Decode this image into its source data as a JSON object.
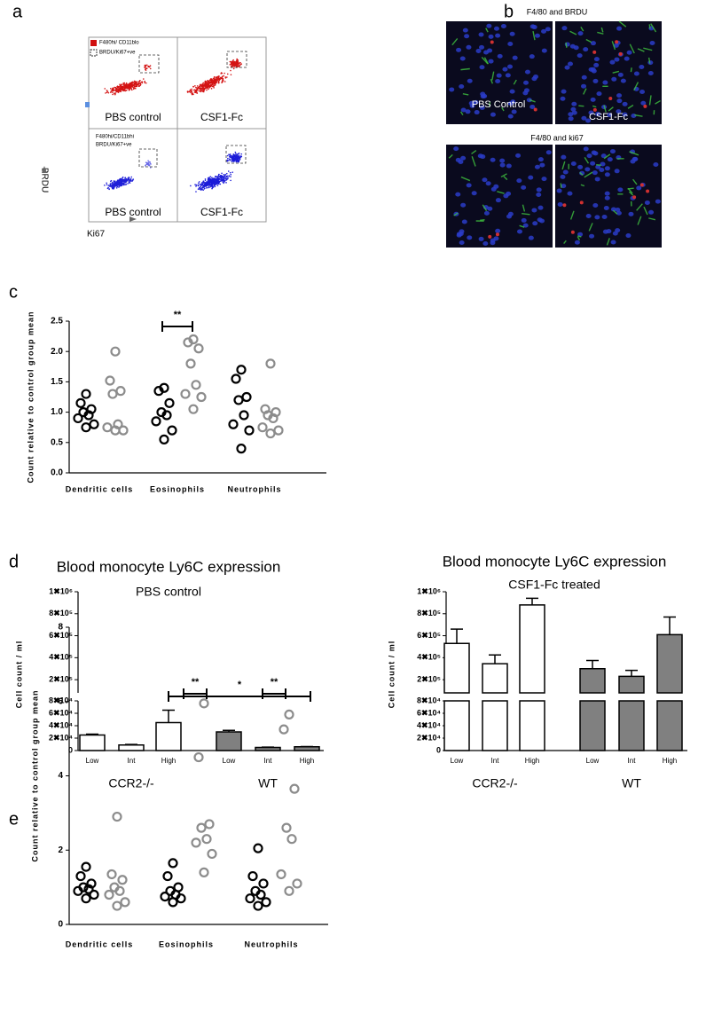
{
  "panel_labels": [
    "a",
    "b",
    "c",
    "d",
    "e"
  ],
  "panel_a": {
    "gates_top": [
      "F480hi/ CD11blo",
      "BRDU/Ki67+ve"
    ],
    "gates_bottom": [
      "F480hi/CD11bhi",
      "BRDU/Ki67+ve"
    ],
    "plot_labels": [
      "PBS control",
      "CSF1-Fc",
      "PBS control",
      "CSF1-Fc"
    ],
    "y_axis": "BRDU",
    "x_axis": "Ki67"
  },
  "panel_b": {
    "titles": [
      "F4/80 and BRDU",
      "F4/80 and ki67"
    ],
    "image_labels": [
      "PBS Control",
      "CSF1-Fc"
    ]
  },
  "chart_data": [
    {
      "type": "dot",
      "ylabel": "Count relative to control group mean",
      "categories": [
        "Dendritic cells",
        "Eosinophils",
        "Neutrophils"
      ],
      "series": [
        {
          "color": "#000000",
          "values": [
            [
              1.3,
              1.15,
              1.05,
              1.0,
              0.95,
              0.9,
              0.8,
              0.75
            ],
            [
              1.4,
              1.35,
              1.15,
              1.0,
              0.95,
              0.85,
              0.7,
              0.55
            ],
            [
              1.7,
              1.55,
              1.25,
              1.2,
              0.95,
              0.8,
              0.7,
              0.4
            ]
          ]
        },
        {
          "color": "#8c8c8c",
          "values": [
            [
              2.0,
              1.52,
              1.35,
              1.3,
              0.8,
              0.75,
              0.7,
              0.7
            ],
            [
              2.2,
              2.15,
              2.05,
              1.8,
              1.45,
              1.3,
              1.25,
              1.05
            ],
            [
              1.8,
              1.05,
              1.0,
              0.95,
              0.9,
              0.75,
              0.7,
              0.65
            ]
          ]
        }
      ],
      "ylim": [
        0,
        2.5
      ],
      "yticks": [
        {
          "value": 0,
          "label": "0.0"
        },
        0.5,
        {
          "value": 1,
          "label": "1.0"
        },
        1.5,
        {
          "value": 2,
          "label": "2.0"
        },
        2.5
      ],
      "annotations": [
        "**"
      ]
    },
    {
      "type": "broken_bar",
      "title": "Blood monocyte Ly6C expression",
      "subtitle": "PBS control",
      "ylabel": "Cell count / ml",
      "categories": [
        "Low",
        "Int",
        "High"
      ],
      "series": [
        {
          "name": "CCR2-/-",
          "color": "#ffffff",
          "values": [
            25000,
            9000,
            45000
          ],
          "errors": [
            1500,
            800,
            20000
          ]
        },
        {
          "name": "WT",
          "color": "#808080",
          "values": [
            30000,
            5000,
            6000
          ],
          "errors": [
            2500,
            500,
            500
          ]
        }
      ],
      "ylim_lower": [
        0,
        80000
      ],
      "yticks_lower": [
        0,
        {
          "value": 20000,
          "label": "2✖10⁴"
        },
        {
          "value": 40000,
          "label": "4✖10⁴"
        },
        {
          "value": 60000,
          "label": "6✖10⁴"
        },
        {
          "value": 80000,
          "label": "8✖10⁴"
        }
      ],
      "ylim_upper": [
        80000,
        1000000
      ],
      "yticks_upper": [
        {
          "value": 200000,
          "label": "2✖10⁵"
        },
        {
          "value": 400000,
          "label": "4✖10⁵"
        },
        {
          "value": 600000,
          "label": "6✖10⁵"
        },
        {
          "value": 800000,
          "label": "8✖10⁵"
        },
        {
          "value": 1000000,
          "label": "1✖10⁶"
        }
      ],
      "annotations": [
        "*"
      ]
    },
    {
      "type": "broken_bar",
      "title": "Blood monocyte Ly6C expression",
      "subtitle": "CSF1-Fc treated",
      "ylabel": "Cell count / ml",
      "categories": [
        "Low",
        "Int",
        "High"
      ],
      "series": [
        {
          "name": "CCR2-/-",
          "color": "#ffffff",
          "values": [
            530000,
            345000,
            880000
          ],
          "errors": [
            130000,
            80000,
            60000
          ]
        },
        {
          "name": "WT",
          "color": "#808080",
          "values": [
            300000,
            230000,
            610000
          ],
          "errors": [
            75000,
            55000,
            160000
          ]
        }
      ],
      "ylim_lower": [
        0,
        80000
      ],
      "yticks_lower": [
        0,
        {
          "value": 20000,
          "label": "2✖10⁴"
        },
        {
          "value": 40000,
          "label": "4✖10⁴"
        },
        {
          "value": 60000,
          "label": "6✖10⁴"
        },
        {
          "value": 80000,
          "label": "8✖10⁴"
        }
      ],
      "ylim_upper": [
        80000,
        1000000
      ],
      "yticks_upper": [
        {
          "value": 200000,
          "label": "2✖10⁵"
        },
        {
          "value": 400000,
          "label": "4✖10⁵"
        },
        {
          "value": 600000,
          "label": "6✖10⁵"
        },
        {
          "value": 800000,
          "label": "8✖10⁵"
        },
        {
          "value": 1000000,
          "label": "1✖10⁶"
        }
      ]
    },
    {
      "type": "dot",
      "ylabel": "Count relative to control group mean",
      "categories": [
        "Dendritic cells",
        "Eosinophils",
        "Neutrophils"
      ],
      "series": [
        {
          "color": "#000000",
          "values": [
            [
              1.55,
              1.3,
              1.1,
              1.0,
              0.95,
              0.9,
              0.8,
              0.7
            ],
            [
              1.65,
              1.3,
              1.0,
              0.9,
              0.8,
              0.75,
              0.7,
              0.6
            ],
            [
              2.05,
              1.3,
              1.1,
              0.9,
              0.8,
              0.7,
              0.6,
              0.5
            ]
          ]
        },
        {
          "color": "#8c8c8c",
          "values": [
            [
              2.9,
              1.35,
              1.2,
              1.0,
              0.9,
              0.8,
              0.6,
              0.5
            ],
            [
              5.95,
              4.5,
              2.7,
              2.6,
              2.3,
              2.2,
              1.9,
              1.4
            ],
            [
              5.65,
              5.25,
              3.65,
              2.6,
              2.3,
              1.35,
              1.1,
              0.9
            ]
          ]
        }
      ],
      "ylim": [
        0,
        8
      ],
      "yticks": [
        0,
        2,
        4,
        6,
        8
      ],
      "annotations": [
        "**",
        "**"
      ]
    }
  ]
}
